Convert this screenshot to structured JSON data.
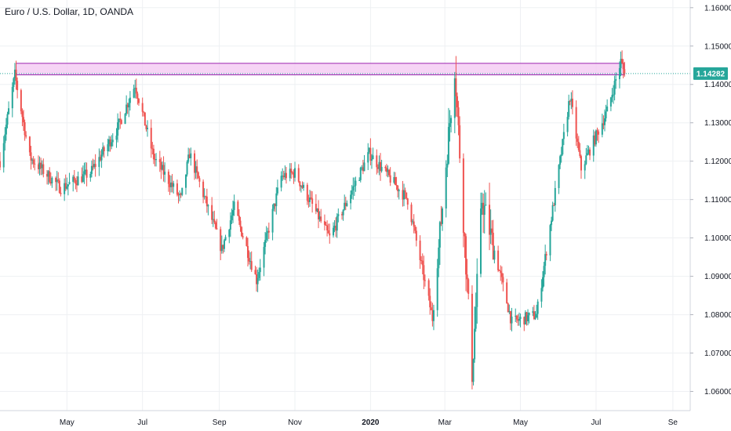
{
  "chart_title": "Euro / U.S. Dollar, 1D, OANDA",
  "chart_data": {
    "type": "candlestick",
    "title": "Euro / U.S. Dollar, 1D, OANDA",
    "ylim": [
      1.055,
      1.162
    ],
    "y_ticks": [
      "1.16000",
      "1.15000",
      "1.14000",
      "1.13000",
      "1.12000",
      "1.11000",
      "1.10000",
      "1.09000",
      "1.08000",
      "1.07000",
      "1.06000"
    ],
    "y_tick_values": [
      1.16,
      1.15,
      1.14,
      1.13,
      1.12,
      1.11,
      1.1,
      1.09,
      1.08,
      1.07,
      1.06
    ],
    "x_ticks": [
      {
        "label": "May",
        "date": "2019-05-01",
        "bold": false
      },
      {
        "label": "Jul",
        "date": "2019-07-01",
        "bold": false
      },
      {
        "label": "Sep",
        "date": "2019-09-01",
        "bold": false
      },
      {
        "label": "Nov",
        "date": "2019-11-01",
        "bold": false
      },
      {
        "label": "2020",
        "date": "2020-01-01",
        "bold": true
      },
      {
        "label": "Mar",
        "date": "2020-03-01",
        "bold": false
      },
      {
        "label": "May",
        "date": "2020-05-01",
        "bold": false
      },
      {
        "label": "Jul",
        "date": "2020-07-01",
        "bold": false
      },
      {
        "label": "Se",
        "date": "2020-09-01",
        "bold": false
      }
    ],
    "x_range": [
      "2019-03-08",
      "2020-09-15"
    ],
    "last_price": "1.14282",
    "last_price_value": 1.14282,
    "resistance_zone": {
      "low": 1.1425,
      "high": 1.1455,
      "from": "2019-03-21",
      "to": "2020-07-24"
    },
    "trend_path": [
      {
        "date": "2019-03-08",
        "close": 1.12
      },
      {
        "date": "2019-03-20",
        "close": 1.1425
      },
      {
        "date": "2019-04-01",
        "close": 1.121
      },
      {
        "date": "2019-04-26",
        "close": 1.113
      },
      {
        "date": "2019-05-20",
        "close": 1.117
      },
      {
        "date": "2019-06-10",
        "close": 1.128
      },
      {
        "date": "2019-06-25",
        "close": 1.14
      },
      {
        "date": "2019-07-10",
        "close": 1.121
      },
      {
        "date": "2019-08-01",
        "close": 1.11
      },
      {
        "date": "2019-08-08",
        "close": 1.122
      },
      {
        "date": "2019-09-03",
        "close": 1.097
      },
      {
        "date": "2019-09-13",
        "close": 1.108
      },
      {
        "date": "2019-10-01",
        "close": 1.089
      },
      {
        "date": "2019-10-21",
        "close": 1.116
      },
      {
        "date": "2019-11-01",
        "close": 1.117
      },
      {
        "date": "2019-11-29",
        "close": 1.1
      },
      {
        "date": "2019-12-31",
        "close": 1.122
      },
      {
        "date": "2020-01-31",
        "close": 1.11
      },
      {
        "date": "2020-02-20",
        "close": 1.079
      },
      {
        "date": "2020-03-09",
        "close": 1.145
      },
      {
        "date": "2020-03-23",
        "close": 1.065
      },
      {
        "date": "2020-03-31",
        "close": 1.11
      },
      {
        "date": "2020-04-24",
        "close": 1.078
      },
      {
        "date": "2020-05-14",
        "close": 1.08
      },
      {
        "date": "2020-06-10",
        "close": 1.137
      },
      {
        "date": "2020-06-19",
        "close": 1.118
      },
      {
        "date": "2020-07-10",
        "close": 1.133
      },
      {
        "date": "2020-07-21",
        "close": 1.146
      },
      {
        "date": "2020-07-24",
        "close": 1.14282
      }
    ],
    "colors": {
      "up": "#26a69a",
      "down": "#ef5350",
      "zone_fill": "#f3c6f1",
      "zone_border": "#9c27b0",
      "price_line": "#26a69a",
      "grid": "#eef0f3",
      "axis": "#d1d4dc"
    }
  }
}
